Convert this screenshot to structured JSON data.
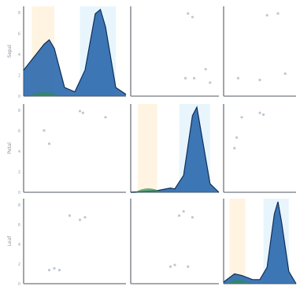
{
  "chart_data": {
    "type": "pairplot",
    "title": "",
    "variables": [
      "Sepal",
      "Petal",
      "Leaf"
    ],
    "hues": [
      {
        "color": "#1f5fa8"
      },
      {
        "color": "#2e8b57"
      },
      {
        "color": "#f5a623"
      }
    ],
    "grid": false,
    "diagonal": [
      {
        "variable": "Sepal",
        "x": [
          0.0,
          0.2,
          0.25,
          0.3,
          0.4,
          0.5,
          0.6,
          0.7,
          0.75,
          0.8,
          0.9,
          1.0
        ],
        "density": [
          0.3,
          0.6,
          0.65,
          0.55,
          0.1,
          0.05,
          0.3,
          0.95,
          1.0,
          0.8,
          0.1,
          0.02
        ]
      },
      {
        "variable": "Petal",
        "x": [
          0.0,
          0.3,
          0.45,
          0.5,
          0.6,
          0.7,
          0.75,
          0.8,
          0.9,
          1.0
        ],
        "density": [
          0.0,
          0.02,
          0.05,
          0.04,
          0.2,
          0.9,
          1.0,
          0.7,
          0.1,
          0.0
        ]
      },
      {
        "variable": "Leaf",
        "x": [
          0.0,
          0.15,
          0.25,
          0.4,
          0.5,
          0.6,
          0.7,
          0.75,
          0.8,
          0.9,
          1.0
        ],
        "density": [
          0.02,
          0.12,
          0.1,
          0.05,
          0.05,
          0.2,
          0.85,
          1.0,
          0.75,
          0.15,
          0.0
        ]
      }
    ],
    "scatter": [
      {
        "row": 0,
        "col": 1,
        "x": [
          0.62,
          0.65,
          0.7,
          0.72,
          0.85,
          0.9
        ],
        "y": [
          0.2,
          0.92,
          0.88,
          0.2,
          0.3,
          0.15
        ]
      },
      {
        "row": 0,
        "col": 2,
        "x": [
          0.2,
          0.5,
          0.6,
          0.75,
          0.85
        ],
        "y": [
          0.2,
          0.18,
          0.9,
          0.92,
          0.25
        ]
      },
      {
        "row": 1,
        "col": 0,
        "x": [
          0.2,
          0.25,
          0.55,
          0.58,
          0.8
        ],
        "y": [
          0.7,
          0.55,
          0.92,
          0.9,
          0.85
        ]
      },
      {
        "row": 1,
        "col": 2,
        "x": [
          0.15,
          0.18,
          0.25,
          0.5,
          0.55
        ],
        "y": [
          0.5,
          0.62,
          0.85,
          0.9,
          0.88
        ]
      },
      {
        "row": 2,
        "col": 0,
        "x": [
          0.25,
          0.3,
          0.35,
          0.45,
          0.55,
          0.6
        ],
        "y": [
          0.16,
          0.18,
          0.16,
          0.8,
          0.75,
          0.78
        ]
      },
      {
        "row": 2,
        "col": 1,
        "x": [
          0.45,
          0.5,
          0.55,
          0.6,
          0.65,
          0.7
        ],
        "y": [
          0.2,
          0.22,
          0.8,
          0.85,
          0.2,
          0.78
        ]
      }
    ],
    "ticks": {
      "y": [
        "0",
        "2",
        "4",
        "6",
        "8"
      ]
    }
  }
}
